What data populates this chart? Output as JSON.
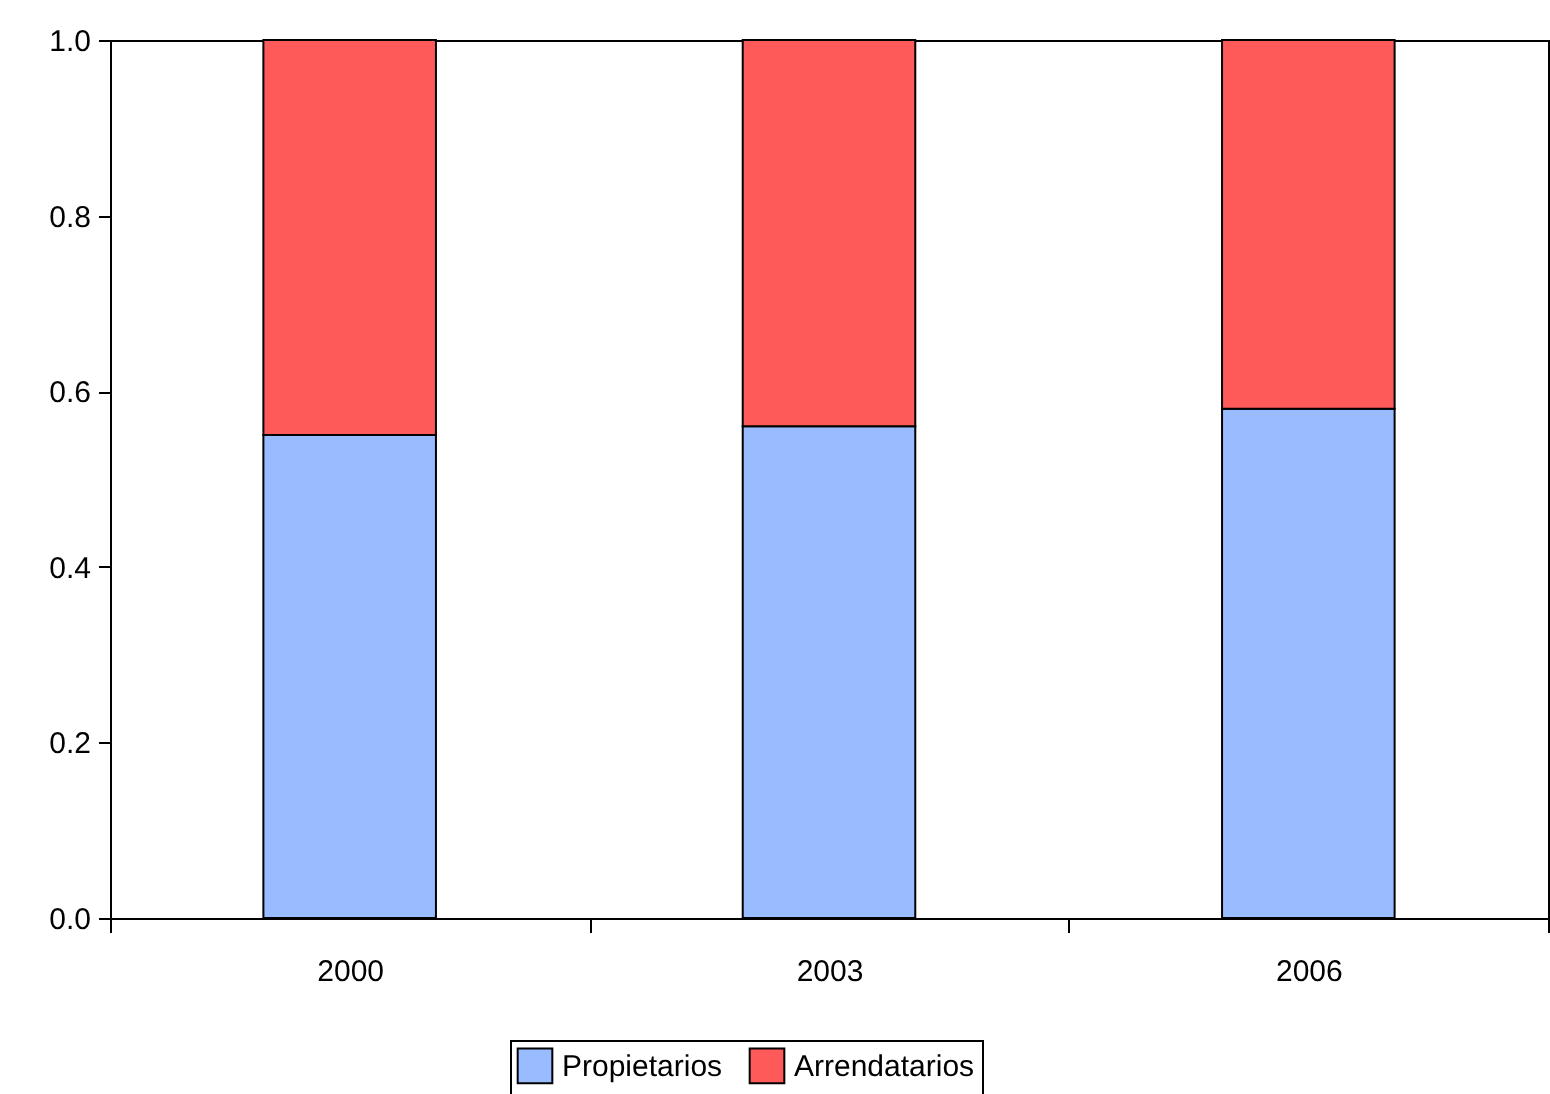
{
  "chart_data": {
    "type": "bar",
    "stacked": true,
    "categories": [
      "2000",
      "2003",
      "2006"
    ],
    "series": [
      {
        "name": "Propietarios",
        "color": "#99bbff",
        "values": [
          0.55,
          0.56,
          0.58
        ]
      },
      {
        "name": "Arrendatarios",
        "color": "#ff5a5a",
        "values": [
          0.45,
          0.44,
          0.42
        ]
      }
    ],
    "ylim": [
      0,
      1
    ],
    "yticks": [
      {
        "value": 0,
        "label": "0.0"
      },
      {
        "value": 0.2,
        "label": "0.2"
      },
      {
        "value": 0.4,
        "label": "0.4"
      },
      {
        "value": 0.6,
        "label": "0.6"
      },
      {
        "value": 0.8,
        "label": "0.8"
      },
      {
        "value": 1,
        "label": "1.0"
      }
    ],
    "grid": false,
    "legend": "bottom"
  }
}
